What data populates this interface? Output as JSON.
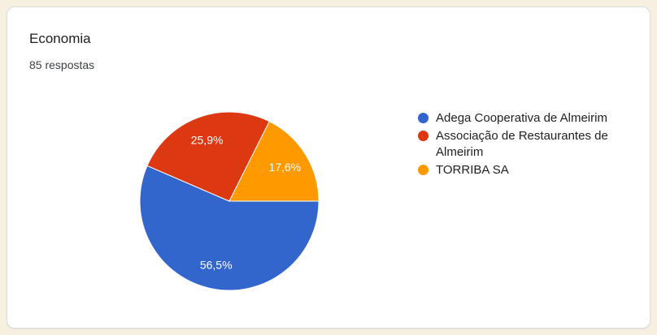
{
  "page": {
    "background_color": "#f7f0e1",
    "card_border_color": "#dadce0"
  },
  "card": {
    "title": "Economia",
    "responses_text": "85 respostas",
    "responses_count": 85
  },
  "chart_data": {
    "type": "pie",
    "title": "Economia",
    "start_angle_deg": 0,
    "direction": "clockwise",
    "legend_position": "right",
    "label_format": "percent-comma-decimal",
    "slices": [
      {
        "label": "Adega Cooperativa de Almeirim",
        "value_pct": 56.5,
        "display": "56,5%",
        "color": "#3366cc"
      },
      {
        "label": "Associação de Restaurantes de Almeirim",
        "value_pct": 25.9,
        "display": "25,9%",
        "color": "#dc3912"
      },
      {
        "label": "TORRIBA SA",
        "value_pct": 17.6,
        "display": "17,6%",
        "color": "#ff9900"
      }
    ]
  }
}
